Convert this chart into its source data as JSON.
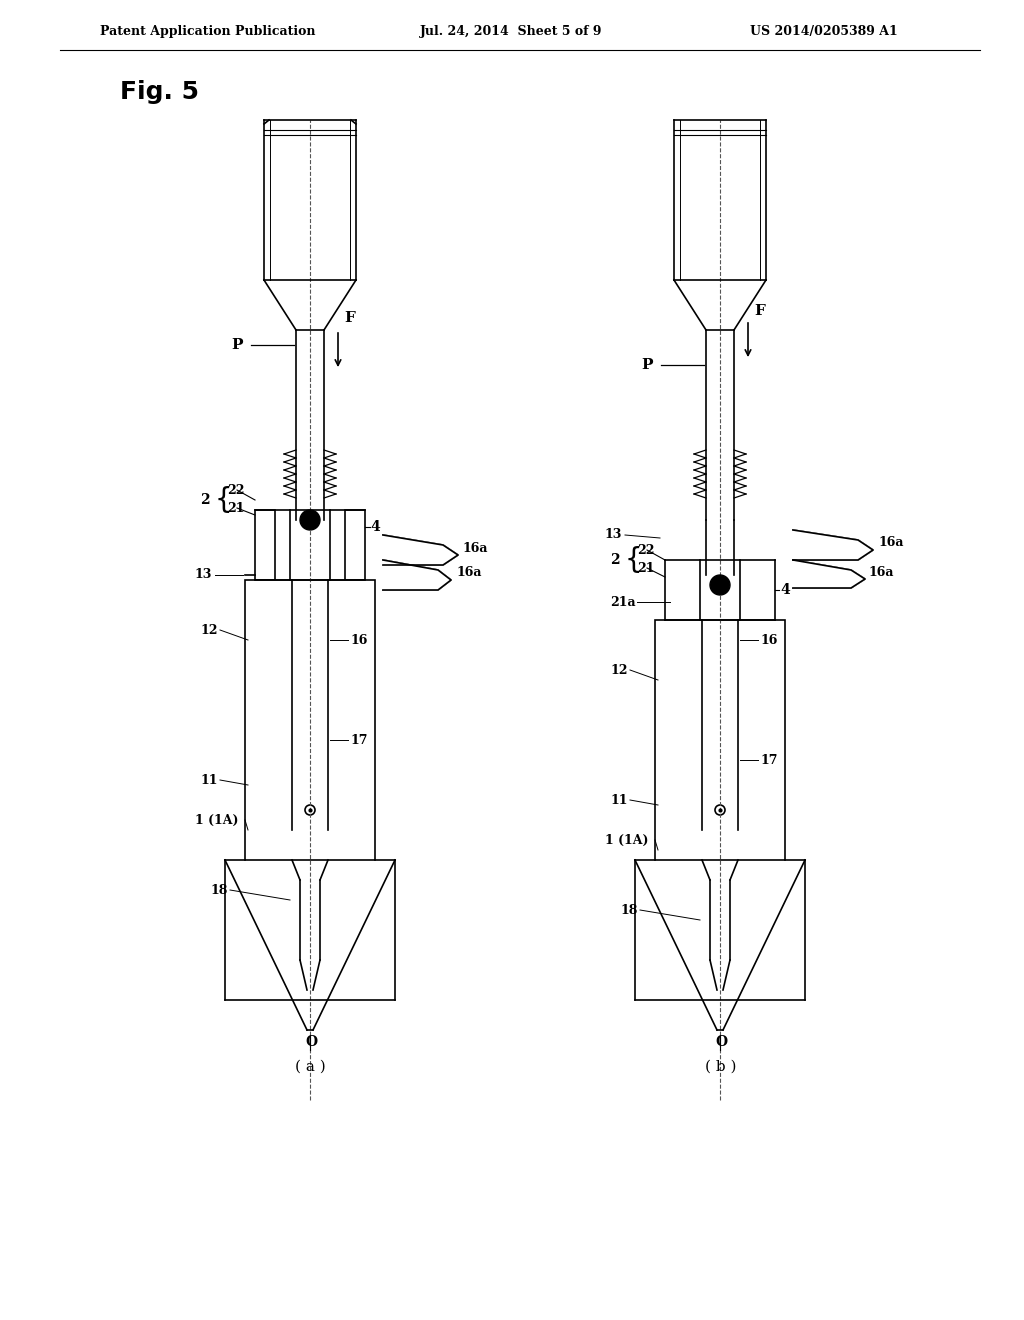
{
  "bg_color": "#ffffff",
  "text_color": "#000000",
  "header_left": "Patent Application Publication",
  "header_mid": "Jul. 24, 2014  Sheet 5 of 9",
  "header_right": "US 2014/0205389 A1",
  "fig_label": "Fig. 5",
  "sub_a": "( a )",
  "sub_b": "( b )",
  "line_color": "#000000",
  "line_width": 1.2
}
